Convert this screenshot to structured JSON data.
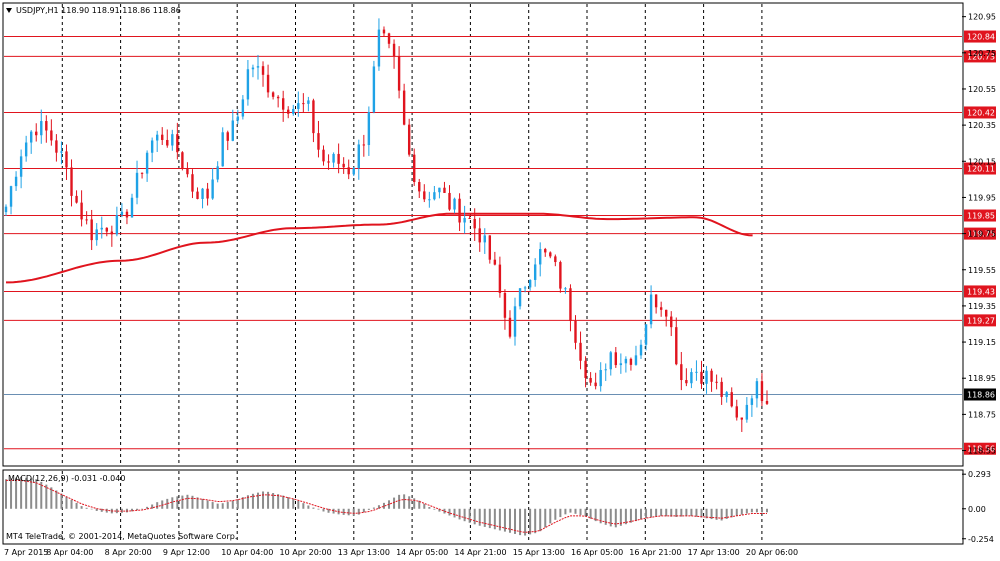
{
  "window": {
    "symbol_header": "USDJPY,H1  118.90 118.91 118.86 118.86",
    "menu_icon": "triangle-down-icon"
  },
  "colors": {
    "bull": "#1fa2e6",
    "bear": "#e0141e",
    "level_line": "#e0141e",
    "ma_line": "#e0141e",
    "grid": "#000000",
    "current_price": "#6a8fb3",
    "macd_hist": "#8c8c8c",
    "macd_signal": "#e0141e"
  },
  "chart_data": [
    {
      "type": "candlestick",
      "symbol": "USDJPY",
      "timeframe": "H1",
      "ylim": [
        118.47,
        121.02
      ],
      "y_ticks": [
        "120.95",
        "120.75",
        "120.55",
        "120.35",
        "120.15",
        "119.95",
        "119.75",
        "119.55",
        "119.35",
        "119.15",
        "118.95",
        "118.75",
        "118.55"
      ],
      "x_labels": [
        "7 Apr 2015",
        "8 Apr 04:00",
        "8 Apr 20:00",
        "9 Apr 12:00",
        "10 Apr 04:00",
        "10 Apr 20:00",
        "13 Apr 13:00",
        "14 Apr 05:00",
        "14 Apr 21:00",
        "15 Apr 13:00",
        "16 Apr 05:00",
        "16 Apr 21:00",
        "17 Apr 13:00",
        "20 Apr 06:00"
      ],
      "price_levels": [
        {
          "value": 120.84,
          "label": "120.84"
        },
        {
          "value": 120.73,
          "label": "120.73"
        },
        {
          "value": 120.42,
          "label": "120.42"
        },
        {
          "value": 120.11,
          "label": "120.11"
        },
        {
          "value": 119.85,
          "label": "119.85"
        },
        {
          "value": 119.75,
          "label": "119.75"
        },
        {
          "value": 119.43,
          "label": "119.43"
        },
        {
          "value": 119.27,
          "label": "119.27"
        },
        {
          "value": 118.56,
          "label": "118.56"
        }
      ],
      "current_price": {
        "value": 118.86,
        "label": "118.86"
      },
      "anchor_closes": [
        119.9,
        120.2,
        120.35,
        120.3,
        120.15,
        119.9,
        119.75,
        119.8,
        119.8,
        120.0,
        120.25,
        120.3,
        120.2,
        120.0,
        119.95,
        120.25,
        120.35,
        120.7,
        120.6,
        120.5,
        120.45,
        120.45,
        120.15,
        120.15,
        120.1,
        120.3,
        120.85,
        120.7,
        120.2,
        119.95,
        120.0,
        119.9,
        119.85,
        119.75,
        119.55,
        119.2,
        119.45,
        119.65,
        119.6,
        119.4,
        119.1,
        118.85,
        119.1,
        119.05,
        119.1,
        119.4,
        119.35,
        118.95,
        119.0,
        118.95,
        118.85,
        118.7,
        118.9,
        118.86
      ],
      "moving_average": {
        "x_labels_index_points": [
          0,
          8,
          14,
          20,
          26,
          31,
          37,
          42,
          48,
          52
        ],
        "values": [
          119.48,
          119.6,
          119.7,
          119.78,
          119.8,
          119.86,
          119.86,
          119.83,
          119.84,
          119.74
        ]
      }
    },
    {
      "type": "histogram",
      "title": "MACD(12,26,9) -0.031 -0.040",
      "y_ticks": [
        "0.293",
        "0.00",
        "-0.254"
      ],
      "ylim": [
        -0.29,
        0.32
      ],
      "anchor_values": [
        0.25,
        0.27,
        0.25,
        0.18,
        0.1,
        0.02,
        -0.02,
        -0.04,
        -0.03,
        0.0,
        0.06,
        0.1,
        0.12,
        0.08,
        0.04,
        0.07,
        0.12,
        0.15,
        0.12,
        0.08,
        0.02,
        -0.03,
        -0.05,
        -0.06,
        0.0,
        0.06,
        0.13,
        0.08,
        0.0,
        -0.05,
        -0.1,
        -0.14,
        -0.17,
        -0.2,
        -0.23,
        -0.2,
        -0.1,
        -0.03,
        -0.06,
        -0.12,
        -0.16,
        -0.12,
        -0.08,
        -0.06,
        -0.07,
        -0.06,
        -0.08,
        -0.1,
        -0.06,
        -0.03,
        -0.03
      ],
      "signal_anchor_values": [
        0.24,
        0.24,
        0.22,
        0.16,
        0.1,
        0.04,
        0.0,
        -0.02,
        -0.02,
        -0.01,
        0.02,
        0.06,
        0.09,
        0.08,
        0.06,
        0.07,
        0.1,
        0.12,
        0.11,
        0.08,
        0.04,
        0.0,
        -0.03,
        -0.04,
        -0.02,
        0.03,
        0.08,
        0.07,
        0.02,
        -0.03,
        -0.07,
        -0.11,
        -0.14,
        -0.17,
        -0.2,
        -0.19,
        -0.12,
        -0.06,
        -0.06,
        -0.1,
        -0.13,
        -0.11,
        -0.08,
        -0.06,
        -0.06,
        -0.06,
        -0.07,
        -0.08,
        -0.06,
        -0.04,
        -0.04
      ]
    }
  ],
  "footer": {
    "copyright": "MT4 TeleTrade, © 2001-2014, MetaQuotes Software Corp."
  }
}
